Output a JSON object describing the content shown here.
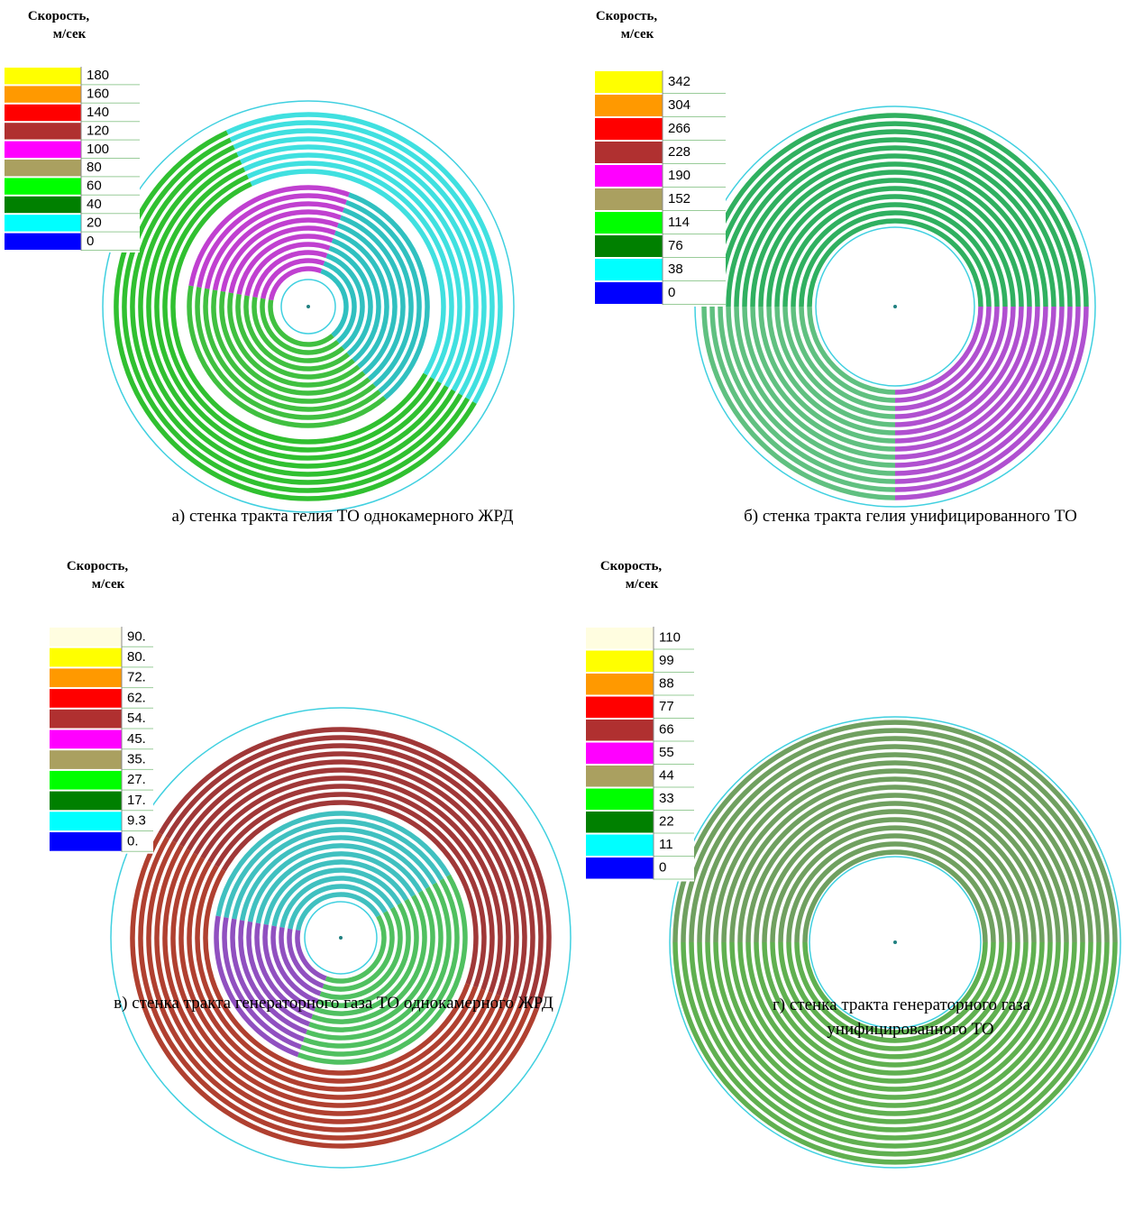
{
  "panels": [
    {
      "title": [
        "Скорость,",
        "м/сек"
      ],
      "legend": [
        {
          "label": "180",
          "color": "#ffff00"
        },
        {
          "label": "160",
          "color": "#ff9900"
        },
        {
          "label": "140",
          "color": "#ff0000"
        },
        {
          "label": "120",
          "color": "#b03030"
        },
        {
          "label": "100",
          "color": "#ff00ff"
        },
        {
          "label": "80",
          "color": "#aaa060"
        },
        {
          "label": "60",
          "color": "#00ff00"
        },
        {
          "label": "40",
          "color": "#008000"
        },
        {
          "label": "20",
          "color": "#00ffff"
        },
        {
          "label": "0",
          "color": "#0000ff"
        }
      ],
      "caption": [
        "а) стенка тракта гелия ТО однокамерного ЖРД"
      ]
    },
    {
      "title": [
        "Скорость,",
        "м/сек"
      ],
      "legend": [
        {
          "label": "342",
          "color": "#ffff00"
        },
        {
          "label": "304",
          "color": "#ff9900"
        },
        {
          "label": "266",
          "color": "#ff0000"
        },
        {
          "label": "228",
          "color": "#b03030"
        },
        {
          "label": "190",
          "color": "#ff00ff"
        },
        {
          "label": "152",
          "color": "#aaa060"
        },
        {
          "label": "114",
          "color": "#00ff00"
        },
        {
          "label": "76",
          "color": "#008000"
        },
        {
          "label": "38",
          "color": "#00ffff"
        },
        {
          "label": "0",
          "color": "#0000ff"
        }
      ],
      "caption": [
        "б) стенка тракта гелия унифицированного ТО"
      ]
    },
    {
      "title": [
        "Скорость,",
        "м/сек"
      ],
      "legend": [
        {
          "label": "90.",
          "color": "#fffde0"
        },
        {
          "label": "80.",
          "color": "#ffff00"
        },
        {
          "label": "72.",
          "color": "#ff9900"
        },
        {
          "label": "62.",
          "color": "#ff0000"
        },
        {
          "label": "54.",
          "color": "#b03030"
        },
        {
          "label": "45.",
          "color": "#ff00ff"
        },
        {
          "label": "35.",
          "color": "#aaa060"
        },
        {
          "label": "27.",
          "color": "#00ff00"
        },
        {
          "label": "17.",
          "color": "#008000"
        },
        {
          "label": "9.3",
          "color": "#00ffff"
        },
        {
          "label": "0.",
          "color": "#0000ff"
        }
      ],
      "caption": [
        "в) стенка тракта генераторного газа ТО однокамерного ЖРД"
      ]
    },
    {
      "title": [
        "Скорость,",
        "м/сек"
      ],
      "legend": [
        {
          "label": "110",
          "color": "#fffde0"
        },
        {
          "label": "99",
          "color": "#ffff00"
        },
        {
          "label": "88",
          "color": "#ff9900"
        },
        {
          "label": "77",
          "color": "#ff0000"
        },
        {
          "label": "66",
          "color": "#b03030"
        },
        {
          "label": "55",
          "color": "#ff00ff"
        },
        {
          "label": "44",
          "color": "#aaa060"
        },
        {
          "label": "33",
          "color": "#00ff00"
        },
        {
          "label": "22",
          "color": "#008000"
        },
        {
          "label": "11",
          "color": "#00ffff"
        },
        {
          "label": "0",
          "color": "#0000ff"
        }
      ],
      "caption": [
        "г) стенка тракта генераторного газа",
        "унифицированного ТО"
      ]
    }
  ]
}
